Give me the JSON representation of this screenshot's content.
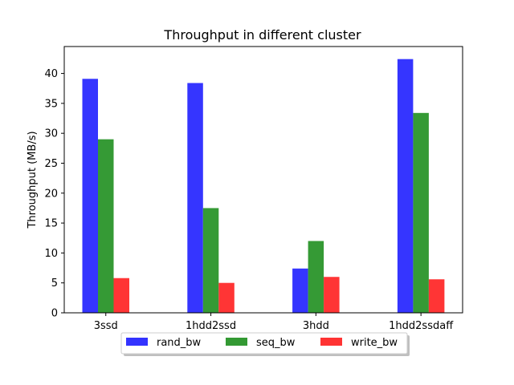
{
  "chart_data": {
    "type": "bar",
    "title": "Throughput in different cluster",
    "xlabel": "",
    "ylabel": "Throughput (MB/s)",
    "categories": [
      "3ssd",
      "1hdd2ssd",
      "3hdd",
      "1hdd2ssdaff"
    ],
    "series": [
      {
        "name": "rand_bw",
        "color": "#3333ff",
        "values": [
          39.1,
          38.4,
          7.4,
          42.4
        ]
      },
      {
        "name": "seq_bw",
        "color": "#339933",
        "values": [
          29.0,
          17.5,
          12.0,
          33.4
        ]
      },
      {
        "name": "write_bw",
        "color": "#ff3333",
        "values": [
          5.8,
          5.0,
          6.0,
          5.6
        ]
      }
    ],
    "ylim": [
      0,
      44.5
    ],
    "yticks": [
      0,
      5,
      10,
      15,
      20,
      25,
      30,
      35,
      40
    ],
    "grid": false,
    "legend_position": "bottom-center"
  }
}
